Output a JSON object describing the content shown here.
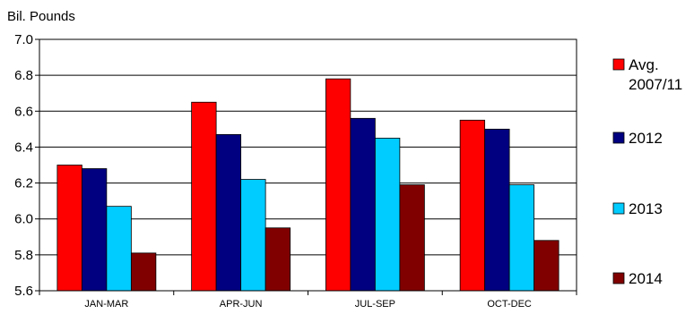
{
  "chart_data": {
    "type": "bar",
    "ylabel": "Bil. Pounds",
    "xlabel": "",
    "ylim": [
      5.6,
      7.0
    ],
    "yticks": [
      "5.6",
      "5.8",
      "6.0",
      "6.2",
      "6.4",
      "6.6",
      "6.8",
      "7.0"
    ],
    "grid": true,
    "legend_position": "right",
    "categories": [
      "JAN-MAR",
      "APR-JUN",
      "JUL-SEP",
      "OCT-DEC"
    ],
    "series": [
      {
        "name_lines": [
          "Avg.",
          "2007/11"
        ],
        "color": "#ff0000",
        "values": [
          6.3,
          6.65,
          6.78,
          6.55
        ]
      },
      {
        "name_lines": [
          "2012"
        ],
        "color": "#000080",
        "values": [
          6.28,
          6.47,
          6.56,
          6.5
        ]
      },
      {
        "name_lines": [
          "2013"
        ],
        "color": "#00ccff",
        "values": [
          6.07,
          6.22,
          6.45,
          6.19
        ]
      },
      {
        "name_lines": [
          "2014"
        ],
        "color": "#800000",
        "values": [
          5.81,
          5.95,
          6.19,
          5.88
        ]
      }
    ]
  }
}
